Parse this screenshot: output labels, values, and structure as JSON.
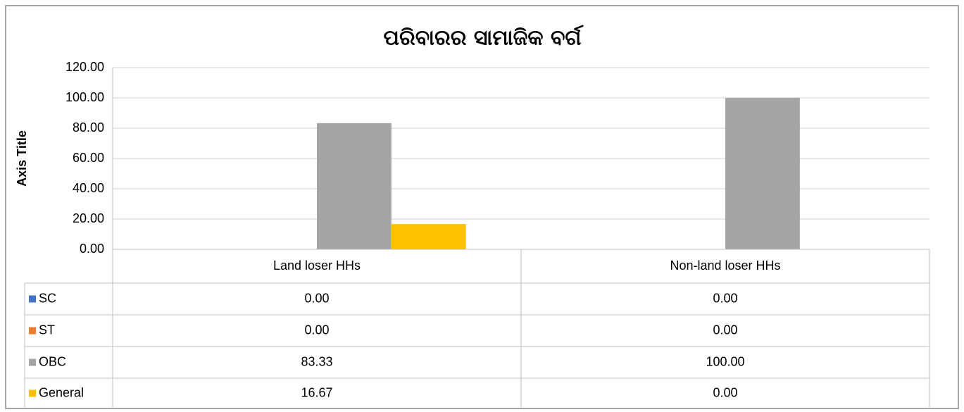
{
  "chart_data": {
    "type": "bar",
    "title": "ପରିବାରର ସାମାଜିକ ବର୍ଗ",
    "y_axis_label": "Axis Title",
    "categories": [
      "Land loser HHs",
      "Non-land loser HHs"
    ],
    "series": [
      {
        "name": "SC",
        "color": "#4472c4",
        "values": [
          0,
          0
        ],
        "value_labels": [
          "0.00",
          "0.00"
        ]
      },
      {
        "name": "ST",
        "color": "#ed7d31",
        "values": [
          0,
          0
        ],
        "value_labels": [
          "0.00",
          "0.00"
        ]
      },
      {
        "name": "OBC",
        "color": "#a5a5a5",
        "values": [
          83.33,
          100
        ],
        "value_labels": [
          "83.33",
          "100.00"
        ]
      },
      {
        "name": "General",
        "color": "#ffc000",
        "values": [
          16.67,
          0
        ],
        "value_labels": [
          "16.67",
          "0.00"
        ]
      }
    ],
    "ylim": [
      0,
      120
    ],
    "yticks": [
      {
        "value": 0,
        "label": "0.00"
      },
      {
        "value": 20,
        "label": "20.00"
      },
      {
        "value": 40,
        "label": "40.00"
      },
      {
        "value": 60,
        "label": "60.00"
      },
      {
        "value": 80,
        "label": "80.00"
      },
      {
        "value": 100,
        "label": "100.00"
      },
      {
        "value": 120,
        "label": "120.00"
      }
    ],
    "grid": true,
    "data_table": true
  }
}
